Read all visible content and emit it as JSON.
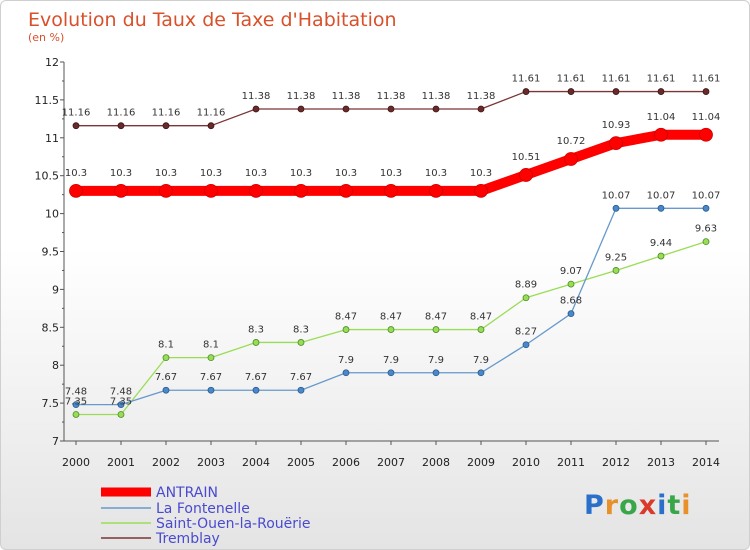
{
  "header": {
    "title": "Evolution du Taux de Taxe d'Habitation",
    "subtitle": "(en %)"
  },
  "logo": {
    "text": "Proxiti",
    "colors": [
      "#2a6fc9",
      "#e8902a",
      "#3aa64a",
      "#d93a2a",
      "#2a6fc9",
      "#3aa64a",
      "#e8902a"
    ]
  },
  "chart_data": {
    "type": "line",
    "title": "Evolution du Taux de Taxe d'Habitation",
    "subtitle": "(en %)",
    "x": [
      "2000",
      "2001",
      "2002",
      "2003",
      "2004",
      "2005",
      "2006",
      "2007",
      "2008",
      "2009",
      "2010",
      "2011",
      "2012",
      "2013",
      "2014"
    ],
    "yticks": [
      "7",
      "7.5",
      "8",
      "8.5",
      "9",
      "9.5",
      "10",
      "10.5",
      "11",
      "11.5",
      "12"
    ],
    "ylim": [
      7,
      12
    ],
    "grid": false,
    "legend": "bottom-left",
    "series": [
      {
        "name": "ANTRAIN",
        "color": "#ff0000",
        "values": [
          10.3,
          10.3,
          10.3,
          10.3,
          10.3,
          10.3,
          10.3,
          10.3,
          10.3,
          10.3,
          10.51,
          10.72,
          10.93,
          11.04,
          11.04
        ],
        "labels": [
          "10.3",
          "10.3",
          "10.3",
          "10.3",
          "10.3",
          "10.3",
          "10.3",
          "10.3",
          "10.3",
          "10.3",
          "10.51",
          "10.72",
          "10.93",
          "11.04",
          "11.04"
        ]
      },
      {
        "name": "La Fontenelle",
        "color": "#6699cc",
        "values": [
          7.48,
          7.48,
          7.67,
          7.67,
          7.67,
          7.67,
          7.9,
          7.9,
          7.9,
          7.9,
          8.27,
          8.68,
          10.07,
          10.07,
          10.07
        ],
        "labels": [
          "7.48",
          "7.48",
          "7.67",
          "7.67",
          "7.67",
          "7.67",
          "7.9",
          "7.9",
          "7.9",
          "7.9",
          "8.27",
          "8.68",
          "10.07",
          "10.07",
          "10.07"
        ]
      },
      {
        "name": "Saint-Ouen-la-Rouërie",
        "color": "#99dd55",
        "values": [
          7.35,
          7.35,
          8.1,
          8.1,
          8.3,
          8.3,
          8.47,
          8.47,
          8.47,
          8.47,
          8.89,
          9.07,
          9.25,
          9.44,
          9.63
        ],
        "labels": [
          "7.35",
          "7.35",
          "8.1",
          "8.1",
          "8.3",
          "8.3",
          "8.47",
          "8.47",
          "8.47",
          "8.47",
          "8.89",
          "9.07",
          "9.25",
          "9.44",
          "9.63"
        ]
      },
      {
        "name": "Tremblay",
        "color": "#7a3535",
        "values": [
          11.16,
          11.16,
          11.16,
          11.16,
          11.38,
          11.38,
          11.38,
          11.38,
          11.38,
          11.38,
          11.61,
          11.61,
          11.61,
          11.61,
          11.61
        ],
        "labels": [
          "11.16",
          "11.16",
          "11.16",
          "11.16",
          "11.38",
          "11.38",
          "11.38",
          "11.38",
          "11.38",
          "11.38",
          "11.61",
          "11.61",
          "11.61",
          "11.61",
          "11.61"
        ]
      }
    ]
  }
}
